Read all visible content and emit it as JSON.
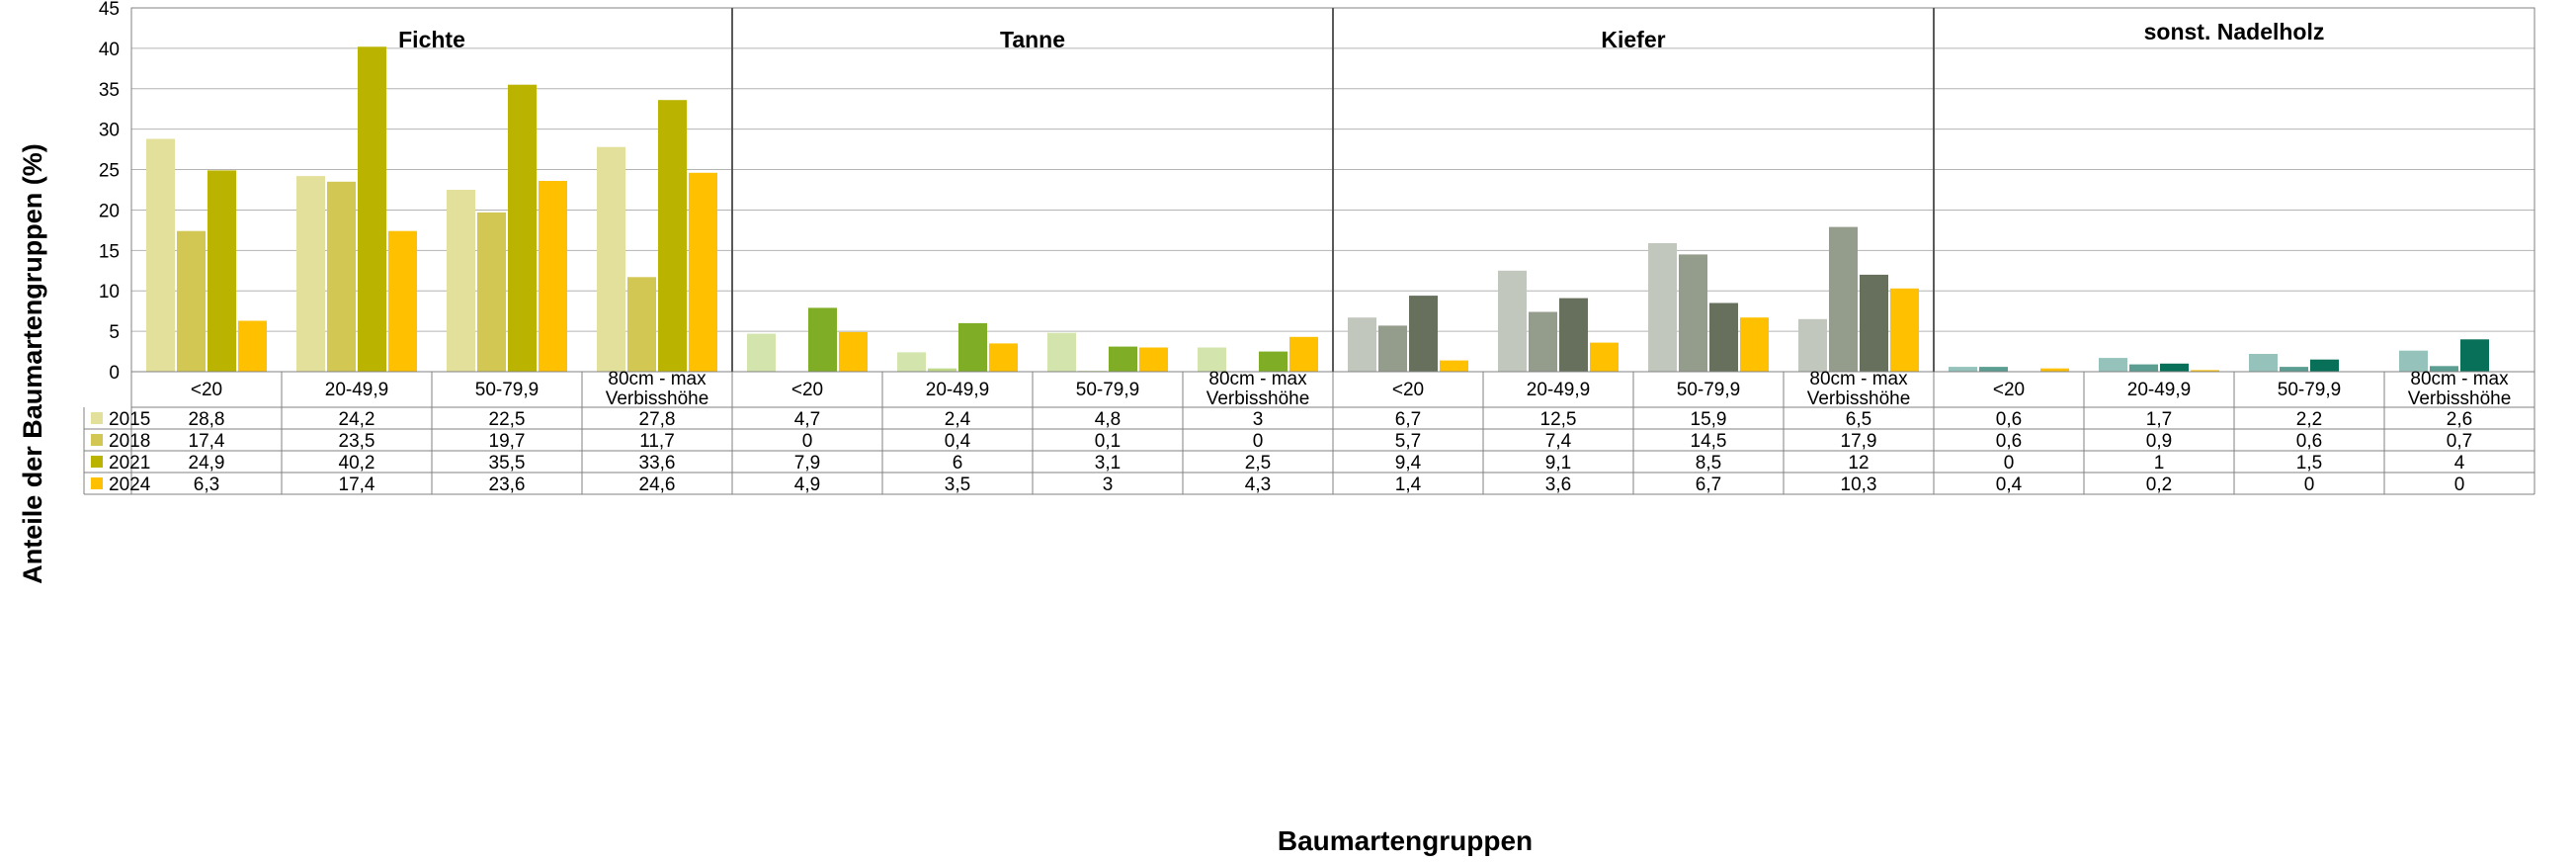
{
  "chart_data": {
    "type": "bar",
    "ylabel": "Anteile der Baumartengruppen (%)",
    "xlabel": "Baumartengruppen",
    "ylim": [
      0,
      45
    ],
    "yticks": [
      0,
      5,
      10,
      15,
      20,
      25,
      30,
      35,
      40,
      45
    ],
    "grid": true,
    "legend": "data-table-left",
    "groups": [
      {
        "name": "Fichte",
        "colors": [
          "#e3e09b",
          "#d2c752",
          "#bab300",
          "#ffc000"
        ]
      },
      {
        "name": "Tanne",
        "colors": [
          "#d3e4ac",
          "#bfd88a",
          "#80ad26",
          "#ffc000"
        ]
      },
      {
        "name": "Kiefer",
        "colors": [
          "#c2c7be",
          "#949c8c",
          "#66705c",
          "#ffc000"
        ]
      },
      {
        "name": "sonst. Nadelholz",
        "colors": [
          "#95c3bc",
          "#5c9e92",
          "#087058",
          "#ffc000"
        ]
      }
    ],
    "categories": [
      "<20",
      "20-49,9",
      "50-79,9",
      "80cm - max Verbisshöhe"
    ],
    "category_lines": [
      [
        "<20"
      ],
      [
        "20-49,9"
      ],
      [
        "50-79,9"
      ],
      [
        "80cm - max",
        "Verbisshöhe"
      ]
    ],
    "series": [
      {
        "name": "2015",
        "values": [
          [
            28.8,
            24.2,
            22.5,
            27.8
          ],
          [
            4.7,
            2.4,
            4.8,
            3
          ],
          [
            6.7,
            12.5,
            15.9,
            6.5
          ],
          [
            0.6,
            1.7,
            2.2,
            2.6
          ]
        ]
      },
      {
        "name": "2018",
        "values": [
          [
            17.4,
            23.5,
            19.7,
            11.7
          ],
          [
            0,
            0.4,
            0.1,
            0
          ],
          [
            5.7,
            7.4,
            14.5,
            17.9
          ],
          [
            0.6,
            0.9,
            0.6,
            0.7
          ]
        ]
      },
      {
        "name": "2021",
        "values": [
          [
            24.9,
            40.2,
            35.5,
            33.6
          ],
          [
            7.9,
            6,
            3.1,
            2.5
          ],
          [
            9.4,
            9.1,
            8.5,
            12
          ],
          [
            0,
            1,
            1.5,
            4
          ]
        ]
      },
      {
        "name": "2024",
        "values": [
          [
            6.3,
            17.4,
            23.6,
            24.6
          ],
          [
            4.9,
            3.5,
            3,
            4.3
          ],
          [
            1.4,
            3.6,
            6.7,
            10.3
          ],
          [
            0.4,
            0.2,
            0,
            0
          ]
        ]
      }
    ],
    "table_labels": [
      [
        "28,8",
        "24,2",
        "22,5",
        "27,8",
        "4,7",
        "2,4",
        "4,8",
        "3",
        "6,7",
        "12,5",
        "15,9",
        "6,5",
        "0,6",
        "1,7",
        "2,2",
        "2,6"
      ],
      [
        "17,4",
        "23,5",
        "19,7",
        "11,7",
        "0",
        "0,4",
        "0,1",
        "0",
        "5,7",
        "7,4",
        "14,5",
        "17,9",
        "0,6",
        "0,9",
        "0,6",
        "0,7"
      ],
      [
        "24,9",
        "40,2",
        "35,5",
        "33,6",
        "7,9",
        "6",
        "3,1",
        "2,5",
        "9,4",
        "9,1",
        "8,5",
        "12",
        "0",
        "1",
        "1,5",
        "4"
      ],
      [
        "6,3",
        "17,4",
        "23,6",
        "24,6",
        "4,9",
        "3,5",
        "3",
        "4,3",
        "1,4",
        "3,6",
        "6,7",
        "10,3",
        "0,4",
        "0,2",
        "0",
        "0"
      ]
    ],
    "legend_swatch_colors": [
      "#e3e09b",
      "#d2c752",
      "#bab300",
      "#ffc000"
    ]
  }
}
